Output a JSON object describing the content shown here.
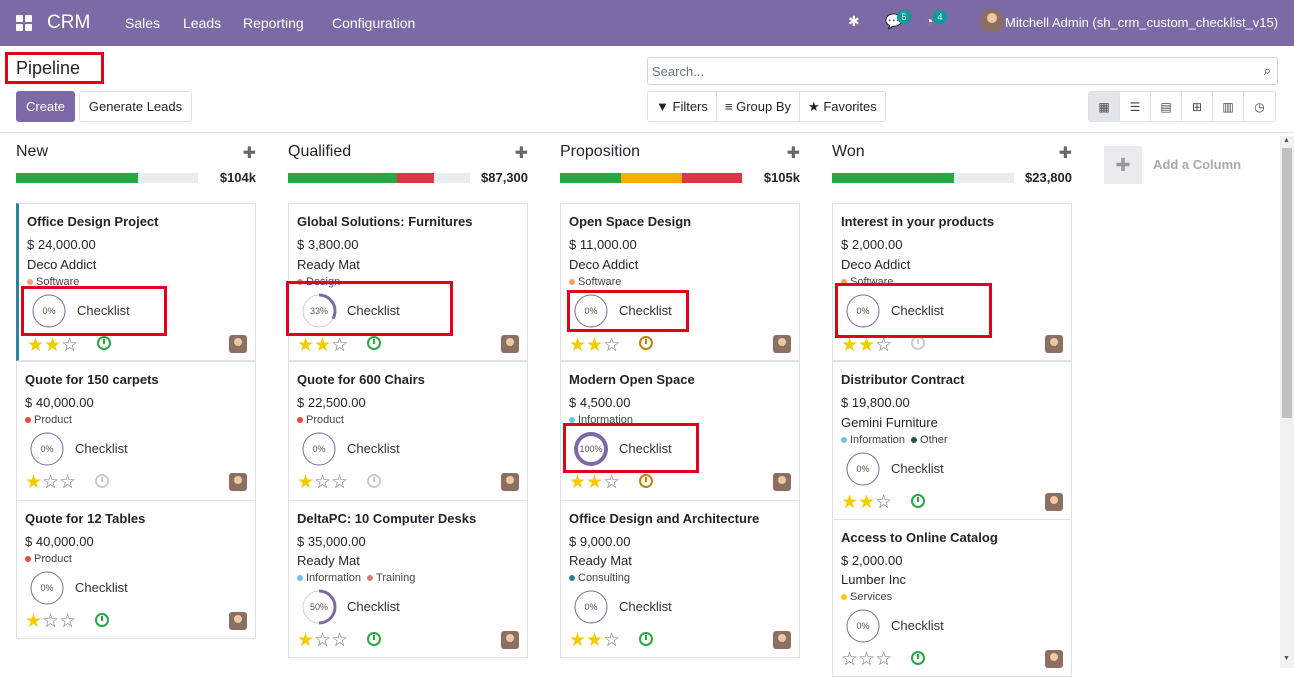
{
  "navbar": {
    "brand": "CRM",
    "menu": [
      "Sales",
      "Leads",
      "Reporting",
      "Configuration"
    ],
    "chat_badge": "5",
    "activity_badge": "4",
    "user": "Mitchell Admin (sh_crm_custom_checklist_v15)"
  },
  "control": {
    "title": "Pipeline",
    "create_label": "Create",
    "generate_label": "Generate Leads",
    "search_placeholder": "Search...",
    "filters_label": "Filters",
    "groupby_label": "Group By",
    "favorites_label": "Favorites"
  },
  "add_column_label": "Add a Column",
  "columns": [
    {
      "name": "New",
      "total": "$104k",
      "cards": [
        {
          "name": "Office Design Project",
          "amount": "$ 24,000.00",
          "partner": "Deco Addict",
          "tags": [
            "Software"
          ],
          "checklist_pct": "0%",
          "checklist_label": "Checklist",
          "stars": 2
        },
        {
          "name": "Quote for 150 carpets",
          "amount": "$ 40,000.00",
          "partner": "",
          "tags": [
            "Product"
          ],
          "checklist_pct": "0%",
          "checklist_label": "Checklist",
          "stars": 1
        },
        {
          "name": "Quote for 12 Tables",
          "amount": "$ 40,000.00",
          "partner": "",
          "tags": [
            "Product"
          ],
          "checklist_pct": "0%",
          "checklist_label": "Checklist",
          "stars": 1
        }
      ]
    },
    {
      "name": "Qualified",
      "total": "$87,300",
      "cards": [
        {
          "name": "Global Solutions: Furnitures",
          "amount": "$ 3,800.00",
          "partner": "Ready Mat",
          "tags": [
            "Design"
          ],
          "checklist_pct": "33%",
          "checklist_label": "Checklist",
          "stars": 2
        },
        {
          "name": "Quote for 600 Chairs",
          "amount": "$ 22,500.00",
          "partner": "",
          "tags": [
            "Product"
          ],
          "checklist_pct": "0%",
          "checklist_label": "Checklist",
          "stars": 1
        },
        {
          "name": "DeltaPC: 10 Computer Desks",
          "amount": "$ 35,000.00",
          "partner": "Ready Mat",
          "tags": [
            "Information",
            "Training"
          ],
          "checklist_pct": "50%",
          "checklist_label": "Checklist",
          "stars": 1
        }
      ]
    },
    {
      "name": "Proposition",
      "total": "$105k",
      "cards": [
        {
          "name": "Open Space Design",
          "amount": "$ 11,000.00",
          "partner": "Deco Addict",
          "tags": [
            "Software"
          ],
          "checklist_pct": "0%",
          "checklist_label": "Checklist",
          "stars": 2
        },
        {
          "name": "Modern Open Space",
          "amount": "$ 4,500.00",
          "partner": "",
          "tags": [
            "Information"
          ],
          "checklist_pct": "100%",
          "checklist_label": "Checklist",
          "stars": 2
        },
        {
          "name": "Office Design and Architecture",
          "amount": "$ 9,000.00",
          "partner": "Ready Mat",
          "tags": [
            "Consulting"
          ],
          "checklist_pct": "0%",
          "checklist_label": "Checklist",
          "stars": 2
        }
      ]
    },
    {
      "name": "Won",
      "total": "$23,800",
      "cards": [
        {
          "name": "Interest in your products",
          "amount": "$ 2,000.00",
          "partner": "Deco Addict",
          "tags": [
            "Software"
          ],
          "checklist_pct": "0%",
          "checklist_label": "Checklist",
          "stars": 2
        },
        {
          "name": "Distributor Contract",
          "amount": "$ 19,800.00",
          "partner": "Gemini Furniture",
          "tags": [
            "Information",
            "Other"
          ],
          "checklist_pct": "0%",
          "checklist_label": "Checklist",
          "stars": 2
        },
        {
          "name": "Access to Online Catalog",
          "amount": "$ 2,000.00",
          "partner": "Lumber Inc",
          "tags": [
            "Services"
          ],
          "checklist_pct": "0%",
          "checklist_label": "Checklist",
          "stars": 0
        }
      ]
    }
  ],
  "colors": {
    "navbar": "#7c6aa6",
    "highlight": "#e3001b",
    "progress_green": "#28a745",
    "progress_red": "#dc3545",
    "progress_orange": "#ffac00",
    "star_on": "#f3cc00"
  },
  "icons": [
    "apps-icon",
    "bug-icon",
    "chat-icon",
    "clock-icon",
    "search-icon",
    "filter-icon",
    "kanban-icon",
    "list-icon",
    "calendar-icon",
    "pivot-icon",
    "graph-icon",
    "activity-icon",
    "plus-icon",
    "star-icon",
    "avatar"
  ]
}
